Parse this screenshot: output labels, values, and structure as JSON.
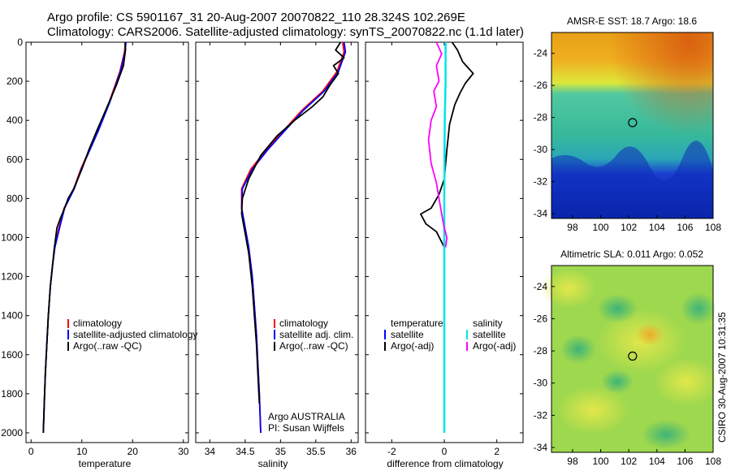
{
  "figure": {
    "title_line1": "Argo profile: CS 5901167_31 20-Aug-2007 20070822_110 28.324S 102.269E",
    "title_line2": "Climatology: CARS2006. Satellite-adjusted climatology: synTS_20070822.nc (1.1d later)",
    "credit": "CSIRO 30-Aug-2007 10:31:35",
    "argo_note_line1": "Argo AUSTRALIA",
    "argo_note_line2": "PI: Susan Wijffels"
  },
  "colors": {
    "climatology": "#ff0000",
    "satellite": "#0000ff",
    "argo": "#000000",
    "salinity_satellite": "#00e5e5",
    "salinity_argo": "#ff00ff"
  },
  "chart_data": [
    {
      "type": "line",
      "xlabel": "temperature",
      "ylabel": "",
      "xlim": [
        -1,
        31
      ],
      "ylim": [
        2050,
        0
      ],
      "xticks": [
        0,
        10,
        20,
        30
      ],
      "yticks": [
        0,
        200,
        400,
        600,
        800,
        1000,
        1200,
        1400,
        1600,
        1800,
        2000
      ],
      "legend": [
        "climatology",
        "satellite-adjusted climatology",
        "Argo(..raw -QC)"
      ],
      "series": [
        {
          "name": "climatology",
          "color": "#ff0000",
          "x": [
            18.6,
            18.4,
            17.5,
            15.5,
            13.2,
            11.5,
            9.8,
            8.4,
            6.5,
            5.5,
            4.6,
            4.2,
            3.8,
            3.4,
            3.1,
            2.8,
            2.6,
            2.4
          ],
          "y": [
            0,
            50,
            150,
            300,
            450,
            550,
            650,
            750,
            850,
            950,
            1050,
            1150,
            1250,
            1400,
            1550,
            1700,
            1850,
            2000
          ]
        },
        {
          "name": "satellite-adjusted climatology",
          "color": "#0000ff",
          "x": [
            18.7,
            18.5,
            17.6,
            15.6,
            13.3,
            11.6,
            9.9,
            8.5,
            6.6,
            5.6,
            4.7,
            4.2,
            3.8,
            3.4,
            3.1,
            2.8,
            2.6,
            2.4
          ],
          "y": [
            0,
            50,
            150,
            300,
            450,
            550,
            650,
            750,
            850,
            950,
            1050,
            1150,
            1250,
            1400,
            1550,
            1700,
            1850,
            2000
          ]
        },
        {
          "name": "Argo(..raw -QC)",
          "color": "#000000",
          "x": [
            18.5,
            18.6,
            18.2,
            16.8,
            15.0,
            13.0,
            11.4,
            10.0,
            8.4,
            7.3,
            6.6,
            5.8,
            5.1,
            4.6,
            4.2,
            3.8,
            3.4,
            3.1,
            2.8,
            2.6,
            2.4
          ],
          "y": [
            0,
            40,
            120,
            220,
            330,
            450,
            550,
            650,
            750,
            800,
            850,
            900,
            950,
            1050,
            1150,
            1250,
            1400,
            1550,
            1700,
            1850,
            2000
          ]
        }
      ]
    },
    {
      "type": "line",
      "xlabel": "salinity",
      "ylabel": "",
      "xlim": [
        33.8,
        36.1
      ],
      "ylim": [
        2050,
        0
      ],
      "xticks": [
        34,
        34.5,
        35,
        35.5,
        36
      ],
      "yticks": [],
      "legend": [
        "climatology",
        "satellite adj. clim.",
        "Argo(..raw -QC)"
      ],
      "series": [
        {
          "name": "climatology",
          "color": "#ff0000",
          "x": [
            35.88,
            35.9,
            35.8,
            35.6,
            35.3,
            35.05,
            34.8,
            34.58,
            34.45,
            34.45,
            34.5,
            34.55,
            34.6,
            34.63,
            34.66,
            34.68,
            34.7,
            34.72
          ],
          "y": [
            0,
            50,
            150,
            250,
            350,
            450,
            550,
            650,
            750,
            850,
            950,
            1050,
            1200,
            1350,
            1500,
            1650,
            1800,
            2000
          ]
        },
        {
          "name": "satellite adj. clim.",
          "color": "#0000ff",
          "x": [
            35.9,
            35.92,
            35.82,
            35.62,
            35.32,
            35.07,
            34.82,
            34.6,
            34.46,
            34.45,
            34.5,
            34.55,
            34.6,
            34.63,
            34.66,
            34.68,
            34.7,
            34.72
          ],
          "y": [
            0,
            50,
            150,
            250,
            350,
            450,
            550,
            650,
            750,
            850,
            950,
            1050,
            1200,
            1350,
            1500,
            1650,
            1800,
            2000
          ]
        },
        {
          "name": "Argo(..raw -QC)",
          "color": "#000000",
          "x": [
            35.85,
            35.78,
            35.9,
            35.75,
            35.82,
            35.7,
            35.6,
            35.45,
            35.2,
            34.95,
            34.72,
            34.55,
            34.46,
            34.45,
            34.5,
            34.55,
            34.6,
            34.63,
            34.66,
            34.68,
            34.7
          ],
          "y": [
            0,
            40,
            80,
            120,
            160,
            220,
            280,
            330,
            400,
            480,
            580,
            700,
            800,
            880,
            980,
            1080,
            1250,
            1400,
            1550,
            1700,
            1850
          ]
        }
      ]
    },
    {
      "type": "line",
      "xlabel": "difference from climatology",
      "ylabel": "",
      "xlim": [
        -3,
        3
      ],
      "ylim": [
        2050,
        0
      ],
      "xticks": [
        -2,
        0,
        2
      ],
      "yticks": [],
      "legend": [
        "temperature",
        "satellite",
        "Argo(-adj)",
        "salinity",
        "satellite",
        "Argo(-adj)"
      ],
      "series": [
        {
          "name": "satellite",
          "legend_group": "temperature",
          "color": "#0000ff",
          "x": [
            0.05,
            0.05,
            0.02,
            0.0,
            0.0,
            0.0,
            0.0,
            0.0,
            0.0,
            0.0
          ],
          "y": [
            0,
            200,
            400,
            600,
            800,
            1000,
            1200,
            1500,
            1800,
            2000
          ]
        },
        {
          "name": "Argo(-adj)",
          "legend_group": "temperature",
          "color": "#000000",
          "x": [
            0.3,
            0.5,
            0.7,
            1.1,
            0.8,
            0.6,
            0.4,
            0.2,
            0.1,
            0.0,
            -0.2,
            -0.5,
            -0.9,
            -0.7,
            -0.3,
            0.0,
            0.0,
            0.0
          ],
          "y": [
            0,
            40,
            100,
            160,
            210,
            260,
            320,
            420,
            550,
            700,
            780,
            850,
            880,
            930,
            970,
            1050,
            1300,
            1600
          ]
        },
        {
          "name": "satellite",
          "legend_group": "salinity",
          "color": "#00e5e5",
          "x": [
            0.05,
            0.05,
            0.02,
            0.01,
            0.0,
            0.0,
            0.0,
            0.0,
            0.0,
            0.0
          ],
          "y": [
            0,
            200,
            400,
            600,
            800,
            1000,
            1200,
            1500,
            1800,
            2000
          ]
        },
        {
          "name": "Argo(-adj)",
          "legend_group": "salinity",
          "color": "#ff00ff",
          "x": [
            -0.3,
            -0.1,
            -0.3,
            -0.2,
            -0.4,
            -0.3,
            -0.5,
            -0.6,
            -0.5,
            -0.3,
            -0.2,
            -0.1,
            0.0,
            0.1,
            0.05
          ],
          "y": [
            0,
            60,
            120,
            200,
            250,
            330,
            400,
            500,
            620,
            720,
            800,
            880,
            950,
            1000,
            1050
          ]
        }
      ]
    },
    {
      "type": "heatmap",
      "title": "AMSR-E SST: 18.7 Argo: 18.6",
      "xlabel": "",
      "ylabel": "",
      "xlim": [
        96.5,
        108
      ],
      "ylim": [
        -34.3,
        -22.7
      ],
      "xticks": [
        98,
        100,
        102,
        104,
        106,
        108
      ],
      "yticks": [
        -24,
        -26,
        -28,
        -30,
        -32,
        -34
      ],
      "marker": {
        "lon": 102.269,
        "lat": -28.324
      }
    },
    {
      "type": "heatmap",
      "title": "Altimetric SLA: 0.011 Argo: 0.052",
      "xlabel": "",
      "ylabel": "",
      "xlim": [
        96.5,
        108
      ],
      "ylim": [
        -34.3,
        -22.7
      ],
      "xticks": [
        98,
        100,
        102,
        104,
        106,
        108
      ],
      "yticks": [
        -24,
        -26,
        -28,
        -30,
        -32,
        -34
      ],
      "marker": {
        "lon": 102.269,
        "lat": -28.324
      }
    }
  ]
}
